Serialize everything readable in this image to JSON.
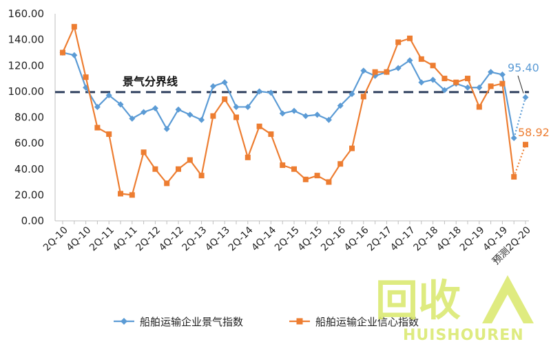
{
  "chart_data": {
    "type": "line",
    "title": "",
    "xlabel": "",
    "ylabel": "",
    "ylim": [
      0,
      160
    ],
    "yticks": [
      "0.00",
      "20.00",
      "40.00",
      "60.00",
      "80.00",
      "100.00",
      "120.00",
      "140.00",
      "160.00"
    ],
    "x_tick_labels": [
      "2Q-10",
      "4Q-10",
      "2Q-11",
      "4Q-11",
      "2Q-12",
      "4Q-12",
      "2Q-13",
      "4Q-13",
      "2Q-14",
      "4Q-14",
      "2Q-15",
      "4Q-15",
      "2Q-16",
      "4Q-16",
      "2Q-17",
      "4Q-17",
      "2Q-18",
      "4Q-18",
      "2Q-19",
      "4Q-19",
      "预测2Q-20"
    ],
    "reference_line": {
      "value": 99.5,
      "label": "景气分界线"
    },
    "series": [
      {
        "name": "船舶运输企业景气指数",
        "color": "#5b9bd5",
        "marker": "diamond",
        "values": [
          130,
          128,
          103,
          88,
          97,
          90,
          79,
          84,
          87,
          71,
          86,
          82,
          78,
          104,
          107,
          88,
          88,
          100,
          99,
          83,
          85,
          81,
          82,
          78,
          89,
          98,
          116,
          112,
          115,
          118,
          124,
          107,
          109,
          101,
          106,
          103,
          103,
          115,
          113,
          64,
          95.4
        ],
        "forecast_from_index": 39,
        "callout": "95.40"
      },
      {
        "name": "船舶运输企业信心指数",
        "color": "#ed7d31",
        "marker": "square",
        "values": [
          130,
          150,
          111,
          72,
          67,
          21,
          20,
          53,
          40,
          29,
          40,
          47,
          35,
          81,
          94,
          80,
          49,
          73,
          67,
          43,
          40,
          32,
          35,
          30,
          44,
          56,
          96,
          115,
          115,
          138,
          141,
          125,
          120,
          110,
          107,
          110,
          88,
          104,
          106,
          34,
          58.92
        ],
        "forecast_from_index": 39,
        "callout": "58.92"
      }
    ],
    "legend_position": "bottom",
    "grid": false
  },
  "watermark": {
    "text": "回收",
    "sub": "HUISHOUREN"
  }
}
